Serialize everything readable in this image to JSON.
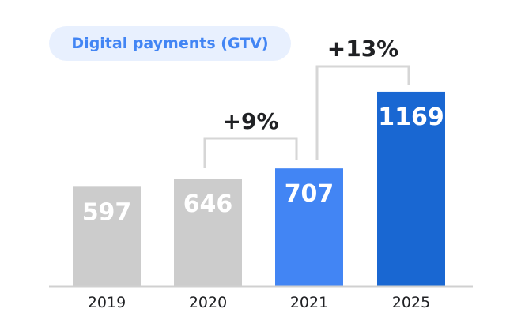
{
  "chart_data": {
    "type": "bar",
    "title": "Digital payments (GTV)",
    "categories": [
      "2019",
      "2020",
      "2021",
      "2025"
    ],
    "values": [
      597,
      646,
      707,
      1169
    ],
    "value_labels": [
      "597",
      "646",
      "707",
      "1169"
    ],
    "colors": [
      "#cccccc",
      "#cccccc",
      "#4285f4",
      "#1967d2"
    ],
    "annotations": [
      {
        "label": "+9%",
        "from": "2020",
        "to": "2021"
      },
      {
        "label": "+13%",
        "from": "2021",
        "to": "2025"
      }
    ],
    "xlabel": "",
    "ylabel": "",
    "grid": false,
    "ylim": [
      0,
      1200
    ]
  }
}
